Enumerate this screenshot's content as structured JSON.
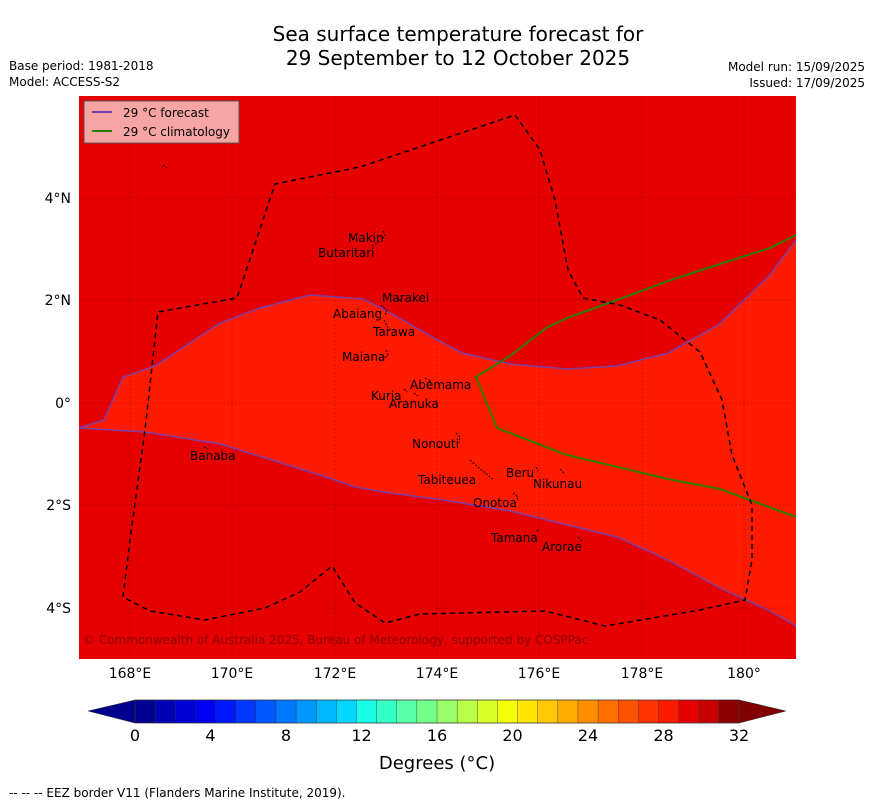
{
  "header": {
    "title_line1": "Sea surface temperature forecast for",
    "title_line2": "29 September to 12 October 2025",
    "base_period": "Base period: 1981-2018",
    "model": "Model: ACCESS-S2",
    "model_run": "Model run: 15/09/2025",
    "issued": "Issued: 17/09/2025"
  },
  "map": {
    "lat_labels": [
      "4°N",
      "2°N",
      "0°",
      "2°S",
      "4°S"
    ],
    "lon_labels": [
      "168°E",
      "170°E",
      "172°E",
      "174°E",
      "176°E",
      "178°E",
      "180°"
    ],
    "legend": {
      "forecast": "29 °C  forecast",
      "climatology": "29 °C  climatology"
    },
    "islands": [
      "Makin",
      "Butaritari",
      "Marakei",
      "Abaiang",
      "Tarawa",
      "Maiana",
      "Abemama",
      "Kuria",
      "Aranuka",
      "Nonouti",
      "Banaba",
      "Tabiteuea",
      "Beru",
      "Nikunau",
      "Onotoa",
      "Tamana",
      "Arorae"
    ],
    "copyright": "© Commonwealth of Australia 2025, Bureau of Meteorology, supported by COSPPac",
    "colors": {
      "above_29": "#e60000",
      "below_29": "#ff1a00",
      "forecast_line": "#7b3fa8",
      "climatology_line": "#2e7d00",
      "eez_border": "#000000",
      "legend_bg": "#f7a4a4"
    }
  },
  "colorbar": {
    "ticks": [
      "0",
      "4",
      "8",
      "12",
      "16",
      "20",
      "24",
      "28",
      "32"
    ],
    "label": "Degrees (°C)",
    "colors": [
      "#00008f",
      "#0000b5",
      "#0000d6",
      "#0000f5",
      "#0018ff",
      "#0038ff",
      "#0058ff",
      "#0078ff",
      "#0098ff",
      "#00b8ff",
      "#00d8ff",
      "#18ffe6",
      "#34ffc6",
      "#58ffa8",
      "#74ff8a",
      "#98ff6a",
      "#b8ff48",
      "#d8ff28",
      "#f5ff08",
      "#ffe600",
      "#ffc800",
      "#ffab00",
      "#ff8e00",
      "#ff7000",
      "#ff5200",
      "#ff3400",
      "#ff1a00",
      "#e60000",
      "#c90000",
      "#8e0000"
    ],
    "under_color": "#00008f",
    "over_color": "#800000"
  },
  "footer": "--  --  -- EEZ border V11 (Flanders Marine Institute, 2019)."
}
